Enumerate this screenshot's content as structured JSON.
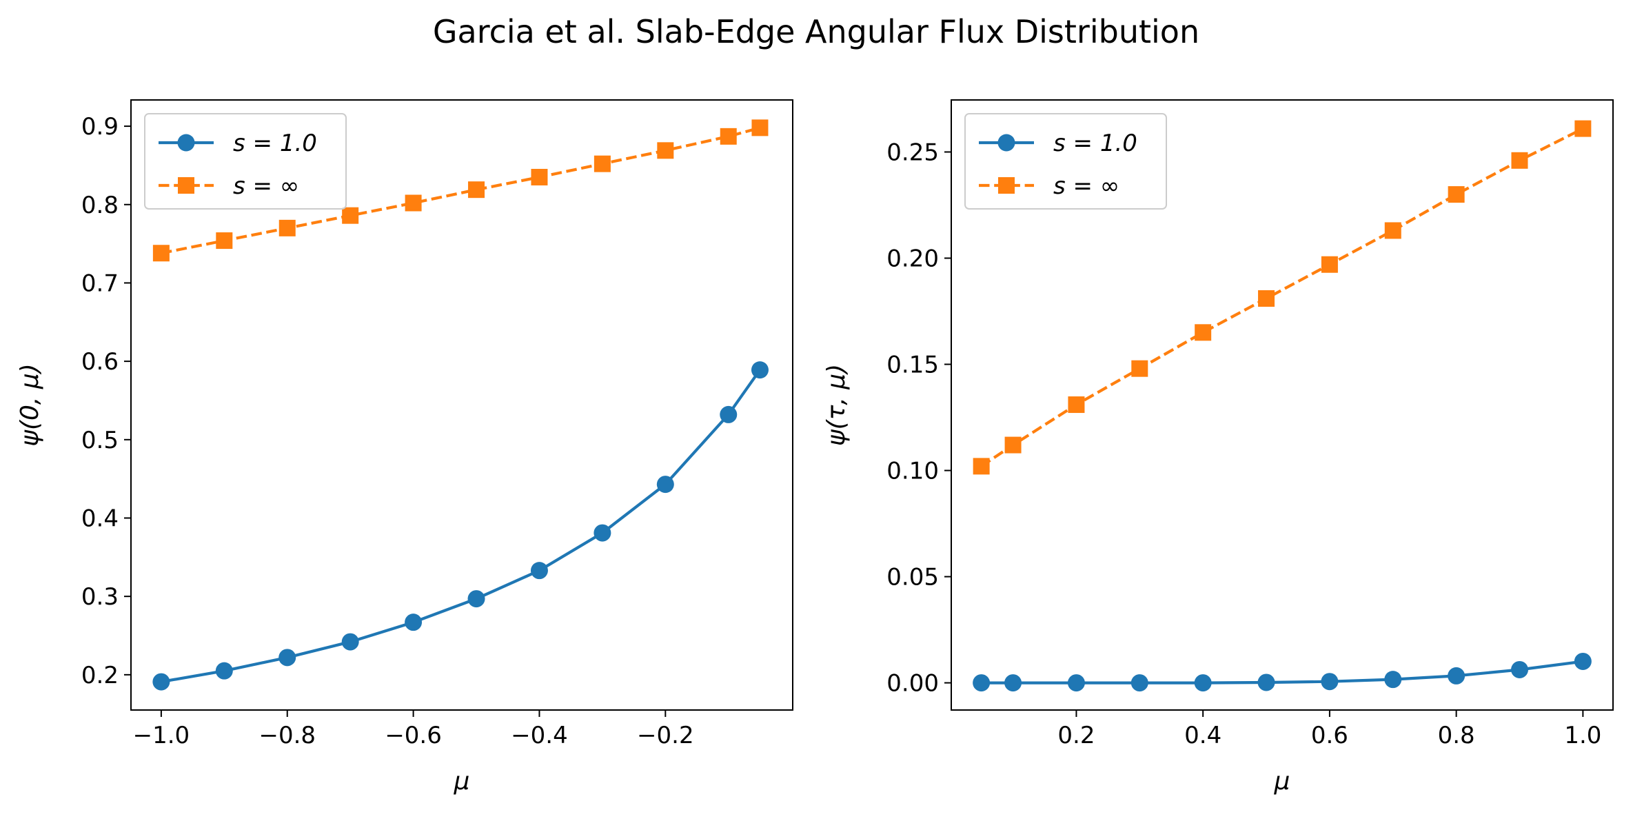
{
  "figure": {
    "title": "Garcia et al. Slab-Edge Angular Flux Distribution"
  },
  "colors": {
    "series_1": "#1f77b4",
    "series_2": "#ff7f0e",
    "axes": "#000000",
    "legend_border": "#cccccc"
  },
  "chart_data": [
    {
      "type": "line",
      "title": "",
      "xlabel": "μ",
      "ylabel": "ψ(0, μ)",
      "xlim": [
        -1.048,
        0.002
      ],
      "ylim": [
        0.155,
        0.9335
      ],
      "xticks": [
        -1.0,
        -0.8,
        -0.6,
        -0.4,
        -0.2
      ],
      "xtick_labels": [
        "−1.0",
        "−0.8",
        "−0.6",
        "−0.4",
        "−0.2"
      ],
      "yticks": [
        0.2,
        0.3,
        0.4,
        0.5,
        0.6,
        0.7,
        0.8,
        0.9
      ],
      "ytick_labels": [
        "0.2",
        "0.3",
        "0.4",
        "0.5",
        "0.6",
        "0.7",
        "0.8",
        "0.9"
      ],
      "grid": false,
      "legend_position": "upper-left",
      "series": [
        {
          "name": "s = 1.0",
          "color": "#1f77b4",
          "marker": "circle",
          "linestyle": "solid",
          "x": [
            -1.0,
            -0.9,
            -0.8,
            -0.7,
            -0.6,
            -0.5,
            -0.4,
            -0.3,
            -0.2,
            -0.1,
            -0.05
          ],
          "y": [
            0.191,
            0.205,
            0.222,
            0.242,
            0.267,
            0.297,
            0.333,
            0.381,
            0.443,
            0.532,
            0.589
          ]
        },
        {
          "name": "s = ∞",
          "color": "#ff7f0e",
          "marker": "square",
          "linestyle": "dashed",
          "x": [
            -1.0,
            -0.9,
            -0.8,
            -0.7,
            -0.6,
            -0.5,
            -0.4,
            -0.3,
            -0.2,
            -0.1,
            -0.05
          ],
          "y": [
            0.738,
            0.754,
            0.77,
            0.786,
            0.802,
            0.819,
            0.835,
            0.852,
            0.869,
            0.887,
            0.898
          ]
        }
      ]
    },
    {
      "type": "line",
      "title": "",
      "xlabel": "μ",
      "ylabel": "ψ(τ, μ)",
      "xlim": [
        0.0025,
        1.0475
      ],
      "ylim": [
        -0.0128,
        0.2745
      ],
      "xticks": [
        0.2,
        0.4,
        0.6,
        0.8,
        1.0
      ],
      "xtick_labels": [
        "0.2",
        "0.4",
        "0.6",
        "0.8",
        "1.0"
      ],
      "yticks": [
        0.0,
        0.05,
        0.1,
        0.15,
        0.2,
        0.25
      ],
      "ytick_labels": [
        "0.00",
        "0.05",
        "0.10",
        "0.15",
        "0.20",
        "0.25"
      ],
      "grid": false,
      "legend_position": "upper-left",
      "series": [
        {
          "name": "s = 1.0",
          "color": "#1f77b4",
          "marker": "circle",
          "linestyle": "solid",
          "x": [
            0.05,
            0.1,
            0.2,
            0.3,
            0.4,
            0.5,
            0.6,
            0.7,
            0.8,
            0.9,
            1.0
          ],
          "y": [
            0.0,
            0.0,
            0.0,
            0.0,
            0.0,
            0.0002,
            0.0006,
            0.0016,
            0.0033,
            0.0062,
            0.0101
          ]
        },
        {
          "name": "s = ∞",
          "color": "#ff7f0e",
          "marker": "square",
          "linestyle": "dashed",
          "x": [
            0.05,
            0.1,
            0.2,
            0.3,
            0.4,
            0.5,
            0.6,
            0.7,
            0.8,
            0.9,
            1.0
          ],
          "y": [
            0.102,
            0.112,
            0.131,
            0.148,
            0.165,
            0.181,
            0.197,
            0.213,
            0.23,
            0.246,
            0.261
          ]
        }
      ]
    }
  ]
}
